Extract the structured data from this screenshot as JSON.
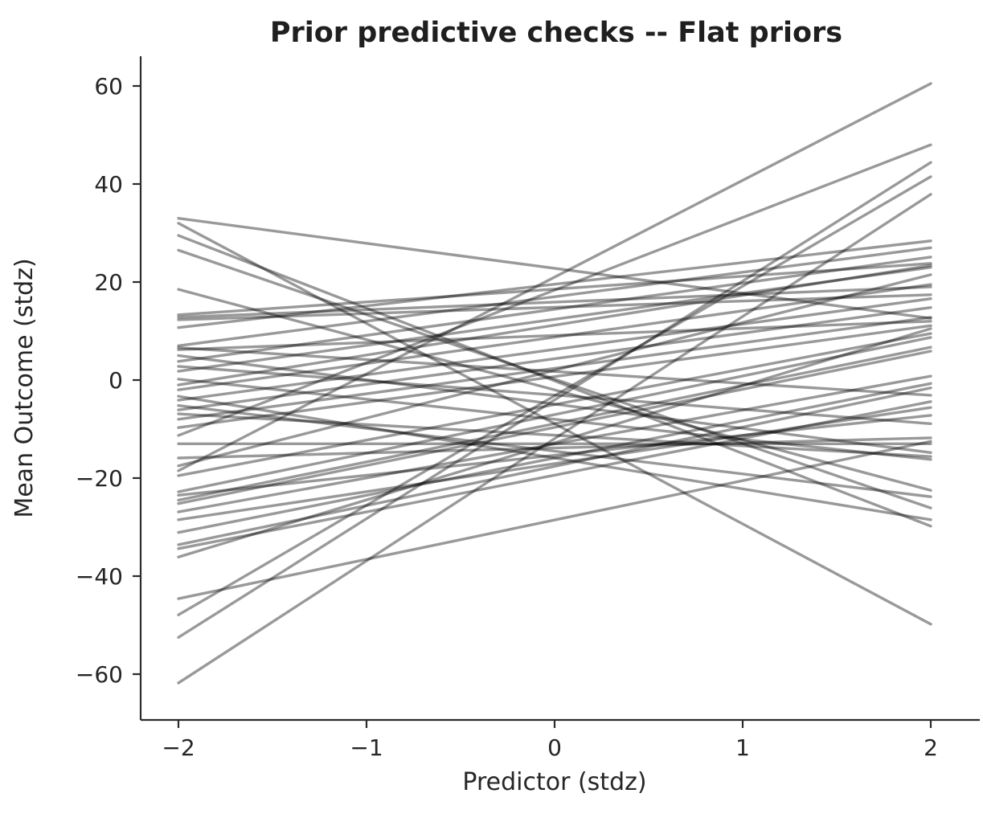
{
  "chart_data": {
    "type": "line",
    "title": "Prior predictive checks -- Flat priors",
    "xlabel": "Predictor (stdz)",
    "ylabel": "Mean Outcome (stdz)",
    "x_range": [
      -2,
      2
    ],
    "xticks": [
      -2,
      -1,
      0,
      1,
      2
    ],
    "xtick_labels": [
      "−2",
      "−1",
      "0",
      "1",
      "2"
    ],
    "yticks": [
      -60,
      -40,
      -20,
      0,
      20,
      40,
      60
    ],
    "ytick_labels": [
      "−60",
      "−40",
      "−20",
      "0",
      "20",
      "40",
      "60"
    ],
    "xlim": [
      -2.2,
      2.26
    ],
    "ylim": [
      -69.3,
      66.1
    ],
    "grid": false,
    "legend": "none",
    "line_color": "#000000",
    "line_alpha": 0.4,
    "line_width": 3.4,
    "series_description": "46 prior predictive draw lines, each defined by [y at x=-2, y at x=2]",
    "draws": [
      [
        33.0,
        12.6
      ],
      [
        32.0,
        -49.8
      ],
      [
        29.5,
        -29.8
      ],
      [
        26.5,
        -26.1
      ],
      [
        18.5,
        -22.5
      ],
      [
        13.3,
        23.8
      ],
      [
        12.8,
        19.0
      ],
      [
        12.3,
        17.4
      ],
      [
        10.7,
        28.4
      ],
      [
        7.0,
        27.0
      ],
      [
        6.6,
        -3.1
      ],
      [
        6.2,
        12.0
      ],
      [
        5.0,
        -14.8
      ],
      [
        3.8,
        25.1
      ],
      [
        2.8,
        -8.9
      ],
      [
        1.8,
        23.0
      ],
      [
        0.2,
        -16.2
      ],
      [
        -1.0,
        23.4
      ],
      [
        -2.0,
        19.5
      ],
      [
        -3.3,
        -28.5
      ],
      [
        -4.1,
        16.6
      ],
      [
        -5.2,
        -23.8
      ],
      [
        -6.1,
        14.8
      ],
      [
        -6.9,
        -15.6
      ],
      [
        -8.0,
        12.8
      ],
      [
        -9.7,
        11.1
      ],
      [
        -11.3,
        48.0
      ],
      [
        -13.0,
        -13.0
      ],
      [
        -15.9,
        -11.8
      ],
      [
        -17.5,
        21.5
      ],
      [
        -18.5,
        60.5
      ],
      [
        -19.5,
        9.5
      ],
      [
        -22.8,
        8.7
      ],
      [
        -23.5,
        -7.2
      ],
      [
        -24.5,
        6.7
      ],
      [
        -25.2,
        5.9
      ],
      [
        -26.9,
        0.8
      ],
      [
        -28.5,
        -5.6
      ],
      [
        -31.1,
        -0.7
      ],
      [
        -33.6,
        -1.6
      ],
      [
        -34.4,
        -4.4
      ],
      [
        -36.1,
        10.5
      ],
      [
        -44.6,
        -12.5
      ],
      [
        -47.9,
        41.5
      ],
      [
        -52.5,
        44.4
      ],
      [
        -61.8,
        37.9
      ]
    ]
  }
}
